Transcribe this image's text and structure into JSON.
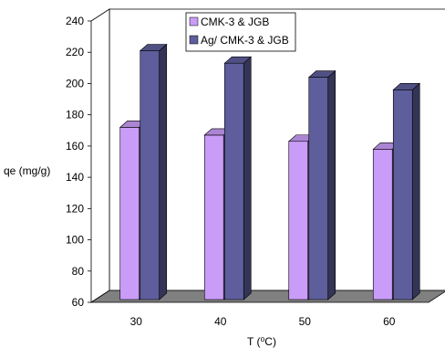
{
  "chart_data": {
    "type": "bar",
    "categories": [
      "30",
      "40",
      "50",
      "60"
    ],
    "series": [
      {
        "name": "CMK-3 & JGB",
        "values": [
          172,
          167,
          163,
          158
        ]
      },
      {
        "name": "Ag/ CMK-3 & JGB",
        "values": [
          221,
          213,
          204,
          196
        ]
      }
    ],
    "ylim": [
      60,
      240
    ],
    "yticks": [
      60,
      80,
      100,
      120,
      140,
      160,
      180,
      200,
      220,
      240
    ],
    "ylabel": "qe (mg/g)",
    "xlabel": "T (⁰C)",
    "legend_position": "top-center",
    "grid": false,
    "three_d": true,
    "colors": {
      "series1": "#c99cf8",
      "series2": "#5e5e9c",
      "floor": "#808080"
    }
  }
}
